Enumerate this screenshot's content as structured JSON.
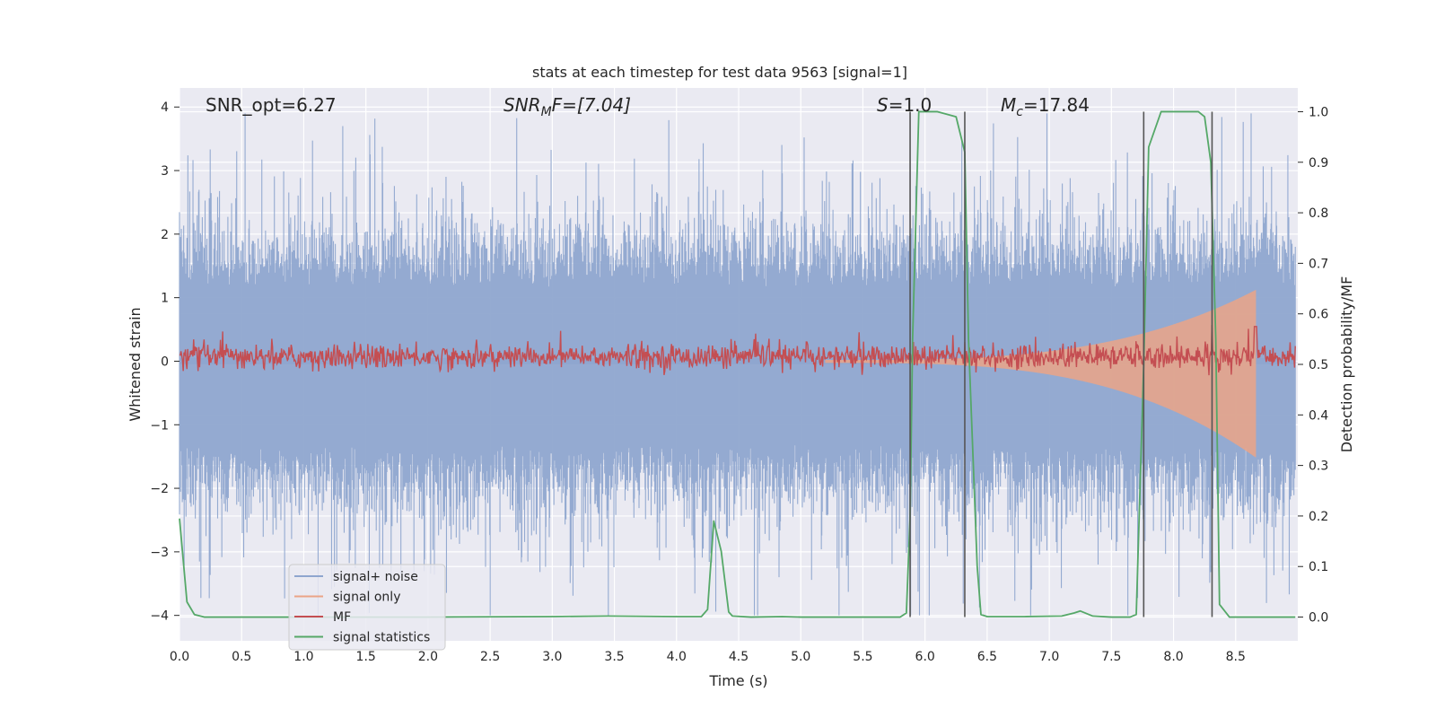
{
  "chart_data": {
    "type": "line",
    "title": "stats at each timestep for test data 9563 [signal=1]",
    "xlabel": "Time (s)",
    "ylabel_left": "Whitened strain",
    "ylabel_right": "Detection probability/MF",
    "xlim": [
      0.0,
      9.0
    ],
    "ylim_left": [
      -4.4,
      4.3
    ],
    "ylim_right": [
      -0.047,
      1.047
    ],
    "x_ticks": [
      "0.0",
      "0.5",
      "1.0",
      "1.5",
      "2.0",
      "2.5",
      "3.0",
      "3.5",
      "4.0",
      "4.5",
      "5.0",
      "5.5",
      "6.0",
      "6.5",
      "7.0",
      "7.5",
      "8.0",
      "8.5"
    ],
    "y_ticks_left": [
      "4",
      "3",
      "2",
      "1",
      "0",
      "−1",
      "−2",
      "−3",
      "−4"
    ],
    "y_ticks_right": [
      "1.0",
      "0.9",
      "0.8",
      "0.7",
      "0.6",
      "0.5",
      "0.4",
      "0.3",
      "0.2",
      "0.1",
      "0.0"
    ],
    "annotations": {
      "snr_opt": "SNR_opt=6.27",
      "snr_mf_sym": "SNR",
      "snr_mf_sub": "M",
      "snr_mf_rest": "F=[7.04]",
      "s_sym": "S",
      "s_rest": "=1.0",
      "mc_sym": "M",
      "mc_sub": "c",
      "mc_rest": "=17.84"
    },
    "vertical_lines_s": [
      5.88,
      6.32,
      7.76,
      8.31
    ],
    "series": [
      {
        "name": "signal+ noise",
        "color": "#8fa6cf",
        "axis": "left",
        "envelope_pos": 1.55,
        "envelope_neg": -1.75,
        "peak_pos": 3.9,
        "peak_neg": -4.0
      },
      {
        "name": "signal only",
        "color": "#eba487",
        "axis": "left",
        "chirp_start_s": 5.2,
        "chirp_end_s": 8.66,
        "chirp_peak": 1.1
      },
      {
        "name": "MF",
        "color": "#c44e52",
        "axis": "right",
        "baseline": 0.515,
        "spread": 0.02,
        "spike_at_s": 8.66,
        "spike_value": 0.575
      },
      {
        "name": "signal statistics",
        "color": "#55a868",
        "axis": "right",
        "x": [
          0.0,
          0.06,
          0.12,
          0.2,
          0.5,
          1.0,
          2.0,
          3.0,
          3.45,
          4.0,
          4.2,
          4.25,
          4.3,
          4.36,
          4.42,
          4.45,
          4.6,
          4.85,
          5.0,
          5.5,
          5.8,
          5.85,
          5.88,
          5.9,
          5.95,
          6.1,
          6.25,
          6.32,
          6.35,
          6.42,
          6.45,
          6.5,
          6.8,
          7.1,
          7.2,
          7.25,
          7.35,
          7.5,
          7.65,
          7.7,
          7.76,
          7.8,
          7.9,
          8.0,
          8.2,
          8.25,
          8.3,
          8.34,
          8.37,
          8.45,
          8.8,
          8.98
        ],
        "values": [
          0.195,
          0.03,
          0.005,
          0.0,
          0.0,
          0.0,
          0.0,
          0.001,
          0.002,
          0.001,
          0.001,
          0.015,
          0.19,
          0.13,
          0.01,
          0.002,
          0.0,
          0.001,
          0.0,
          0.0,
          0.0,
          0.008,
          0.2,
          0.55,
          1.0,
          1.0,
          0.99,
          0.92,
          0.55,
          0.1,
          0.005,
          0.001,
          0.001,
          0.002,
          0.008,
          0.012,
          0.002,
          0.0,
          0.0,
          0.005,
          0.5,
          0.93,
          1.0,
          1.0,
          1.0,
          0.99,
          0.9,
          0.55,
          0.025,
          0.0,
          0.0,
          0.0
        ]
      }
    ],
    "legend_position": "lower-left"
  }
}
